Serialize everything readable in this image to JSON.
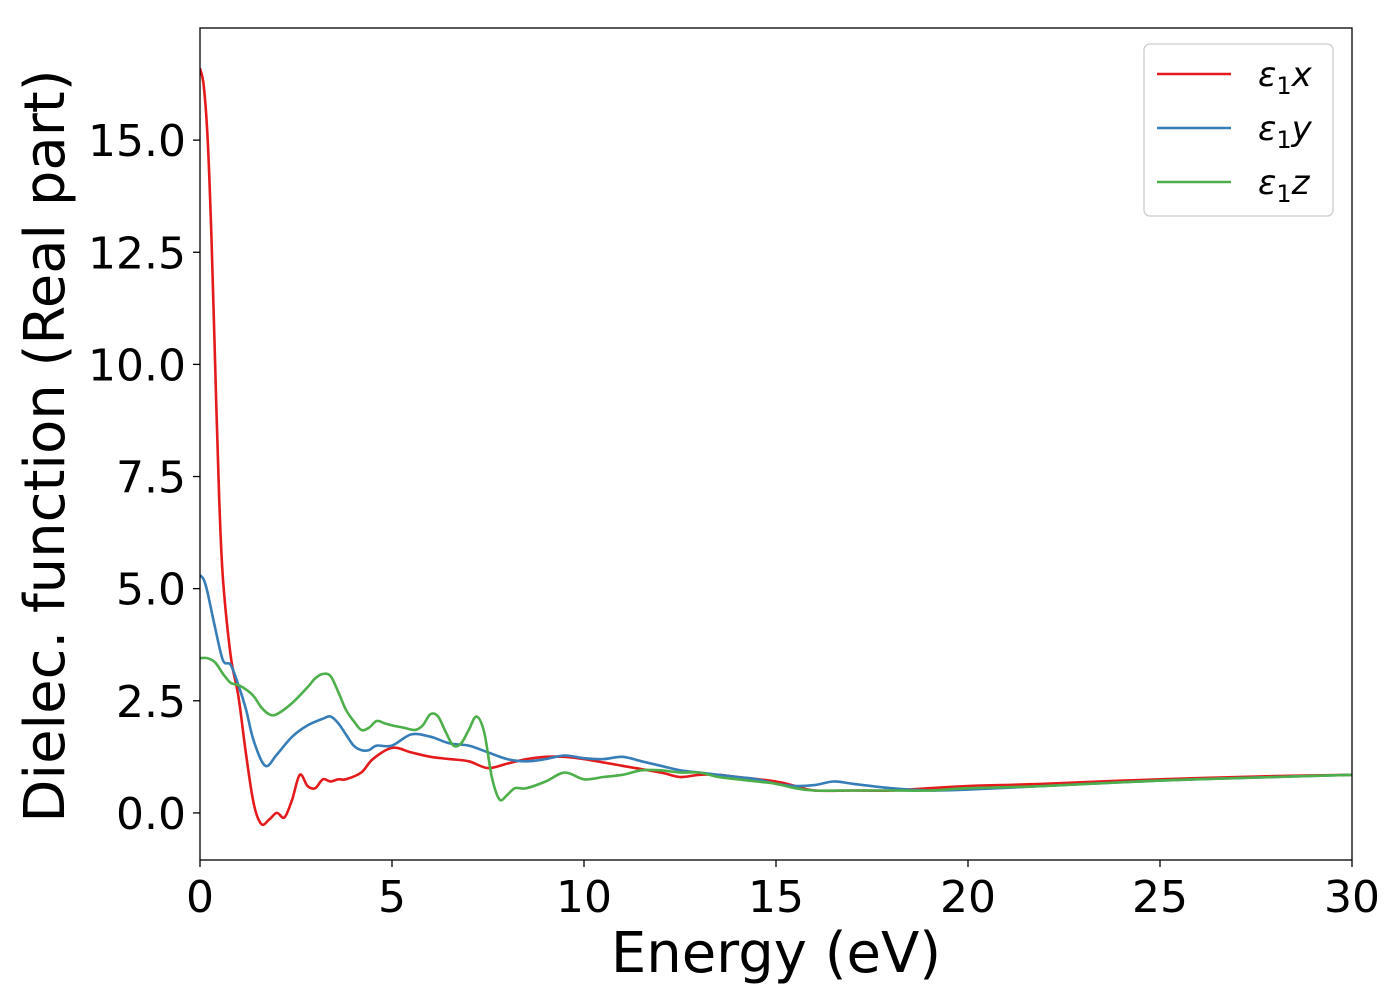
{
  "chart_data": {
    "type": "line",
    "title": "",
    "xlabel": "Energy (eV)",
    "ylabel": "Dielec. function (Real part)",
    "xlim": [
      0,
      30
    ],
    "ylim": [
      -1.05,
      17.5
    ],
    "xticks": [
      0,
      5,
      10,
      15,
      20,
      25,
      30
    ],
    "xtick_labels": [
      "0",
      "5",
      "10",
      "15",
      "20",
      "25",
      "30"
    ],
    "yticks": [
      0.0,
      2.5,
      5.0,
      7.5,
      10.0,
      12.5,
      15.0
    ],
    "ytick_labels": [
      "0.0",
      "2.5",
      "5.0",
      "7.5",
      "10.0",
      "12.5",
      "15.0"
    ],
    "grid": false,
    "legend_position": "upper-right",
    "series": [
      {
        "name": "ε₁x",
        "legend_main": "ε",
        "legend_sub": "1",
        "legend_suffix": "x",
        "color": "#e41a1c",
        "x": [
          0,
          0.1,
          0.2,
          0.3,
          0.4,
          0.5,
          0.6,
          0.8,
          1.0,
          1.2,
          1.4,
          1.6,
          1.8,
          2.0,
          2.2,
          2.4,
          2.6,
          2.8,
          3.0,
          3.2,
          3.4,
          3.6,
          3.8,
          4.2,
          4.5,
          5.0,
          5.5,
          6.0,
          6.5,
          7.0,
          7.5,
          8.0,
          8.5,
          9.0,
          9.5,
          10.0,
          11.0,
          12.0,
          12.5,
          13.0,
          13.5,
          14.0,
          15.0,
          15.5,
          16.0,
          17.0,
          18.0,
          19.0,
          20.0,
          22.0,
          25.0,
          28.0,
          30.0
        ],
        "y": [
          16.6,
          16.2,
          15.0,
          12.8,
          9.8,
          7.0,
          5.2,
          3.5,
          2.6,
          1.3,
          0.2,
          -0.25,
          -0.15,
          0.0,
          -0.1,
          0.3,
          0.85,
          0.6,
          0.55,
          0.75,
          0.7,
          0.75,
          0.75,
          0.9,
          1.2,
          1.45,
          1.35,
          1.25,
          1.2,
          1.15,
          1.0,
          1.1,
          1.2,
          1.25,
          1.25,
          1.2,
          1.05,
          0.9,
          0.8,
          0.85,
          0.85,
          0.8,
          0.7,
          0.6,
          0.5,
          0.5,
          0.5,
          0.55,
          0.6,
          0.65,
          0.75,
          0.82,
          0.85
        ]
      },
      {
        "name": "ε₁y",
        "legend_main": "ε",
        "legend_sub": "1",
        "legend_suffix": "y",
        "color": "#377eb8",
        "x": [
          0,
          0.1,
          0.2,
          0.4,
          0.6,
          0.8,
          1.0,
          1.2,
          1.4,
          1.7,
          2.0,
          2.4,
          2.8,
          3.2,
          3.4,
          3.6,
          3.8,
          4.0,
          4.2,
          4.4,
          4.6,
          5.0,
          5.5,
          6.0,
          6.5,
          7.0,
          7.5,
          8.0,
          8.5,
          9.0,
          9.5,
          10.0,
          10.5,
          11.0,
          11.5,
          12.0,
          12.5,
          13.0,
          13.5,
          14.0,
          14.5,
          15.0,
          15.5,
          16.0,
          16.5,
          17.0,
          18.0,
          19.0,
          20.0,
          22.0,
          25.0,
          28.0,
          30.0
        ],
        "y": [
          5.3,
          5.2,
          4.9,
          4.1,
          3.4,
          3.3,
          2.85,
          2.3,
          1.6,
          1.05,
          1.3,
          1.7,
          1.95,
          2.1,
          2.15,
          2.0,
          1.75,
          1.5,
          1.4,
          1.4,
          1.5,
          1.5,
          1.75,
          1.7,
          1.55,
          1.5,
          1.35,
          1.2,
          1.15,
          1.2,
          1.28,
          1.22,
          1.2,
          1.25,
          1.15,
          1.05,
          0.95,
          0.9,
          0.85,
          0.8,
          0.75,
          0.65,
          0.6,
          0.62,
          0.7,
          0.65,
          0.55,
          0.5,
          0.52,
          0.6,
          0.72,
          0.8,
          0.85
        ]
      },
      {
        "name": "ε₁z",
        "legend_main": "ε",
        "legend_sub": "1",
        "legend_suffix": "z",
        "color": "#4daf4a",
        "x": [
          0,
          0.2,
          0.4,
          0.6,
          0.8,
          1.0,
          1.2,
          1.4,
          1.6,
          1.8,
          2.0,
          2.4,
          2.8,
          3.0,
          3.2,
          3.4,
          3.6,
          3.8,
          4.0,
          4.2,
          4.4,
          4.6,
          4.8,
          5.0,
          5.3,
          5.6,
          5.8,
          6.0,
          6.2,
          6.4,
          6.6,
          6.8,
          7.0,
          7.2,
          7.4,
          7.6,
          7.8,
          8.0,
          8.2,
          8.5,
          9.0,
          9.5,
          10.0,
          10.5,
          11.0,
          11.5,
          12.0,
          12.5,
          13.0,
          13.5,
          14.0,
          14.5,
          15.0,
          15.5,
          16.0,
          17.0,
          18.0,
          19.0,
          20.0,
          22.0,
          25.0,
          28.0,
          30.0
        ],
        "y": [
          3.45,
          3.45,
          3.35,
          3.1,
          2.9,
          2.85,
          2.75,
          2.6,
          2.35,
          2.2,
          2.2,
          2.45,
          2.8,
          3.0,
          3.1,
          3.05,
          2.7,
          2.3,
          2.05,
          1.85,
          1.9,
          2.05,
          2.0,
          1.95,
          1.9,
          1.85,
          1.95,
          2.2,
          2.15,
          1.8,
          1.5,
          1.55,
          1.85,
          2.15,
          1.8,
          0.8,
          0.3,
          0.4,
          0.55,
          0.55,
          0.7,
          0.9,
          0.75,
          0.8,
          0.85,
          0.95,
          0.95,
          0.9,
          0.9,
          0.8,
          0.75,
          0.7,
          0.65,
          0.55,
          0.5,
          0.5,
          0.5,
          0.5,
          0.55,
          0.6,
          0.72,
          0.8,
          0.85
        ]
      }
    ]
  }
}
